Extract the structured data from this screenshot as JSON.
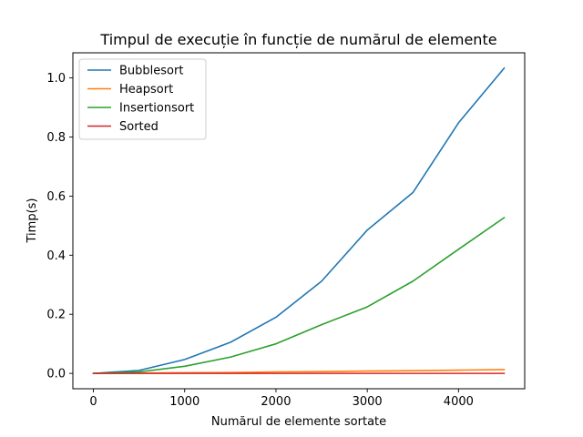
{
  "chart_data": {
    "type": "line",
    "title": "Timpul de execuție în funcție de numărul de elemente",
    "xlabel": "Numărul de elemente sortate",
    "ylabel": "Timp(s)",
    "xlim": [
      -225,
      4725
    ],
    "ylim": [
      -0.052,
      1.085
    ],
    "x_ticks": [
      0,
      1000,
      2000,
      3000,
      4000
    ],
    "x_tick_labels": [
      "0",
      "1000",
      "2000",
      "3000",
      "4000"
    ],
    "y_ticks": [
      0.0,
      0.2,
      0.4,
      0.6,
      0.8,
      1.0
    ],
    "y_tick_labels": [
      "0.0",
      "0.2",
      "0.4",
      "0.6",
      "0.8",
      "1.0"
    ],
    "grid": false,
    "legend_position": "top-left",
    "x": [
      0,
      500,
      1000,
      1500,
      2000,
      2500,
      3000,
      3500,
      4000,
      4500
    ],
    "series": [
      {
        "name": "Bubblesort",
        "color": "#1f77b4",
        "values": [
          0.0,
          0.01,
          0.047,
          0.105,
          0.19,
          0.312,
          0.485,
          0.612,
          0.848,
          1.033
        ]
      },
      {
        "name": "Heapsort",
        "color": "#ff7f0e",
        "values": [
          0.0,
          0.001,
          0.002,
          0.003,
          0.005,
          0.006,
          0.008,
          0.009,
          0.011,
          0.013
        ]
      },
      {
        "name": "Insertionsort",
        "color": "#2ca02c",
        "values": [
          0.0,
          0.005,
          0.024,
          0.055,
          0.1,
          0.165,
          0.225,
          0.312,
          0.42,
          0.527
        ]
      },
      {
        "name": "Sorted",
        "color": "#d62728",
        "values": [
          0.0,
          0.0,
          0.0,
          0.0,
          0.0,
          0.0,
          0.0,
          0.0,
          0.0,
          0.0
        ]
      }
    ]
  }
}
